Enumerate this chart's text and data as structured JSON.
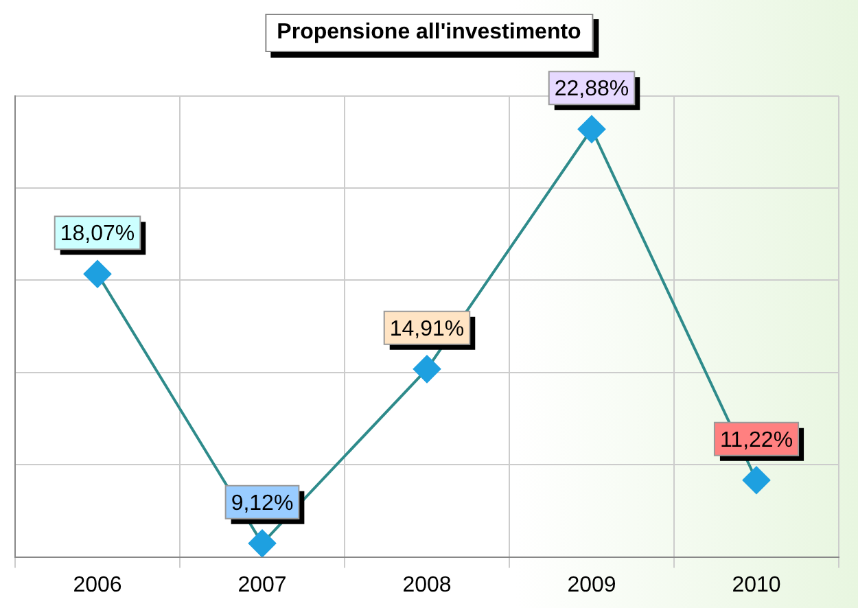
{
  "chart_data": {
    "type": "line",
    "title": "Propensione all'investimento",
    "categories": [
      "2006",
      "2007",
      "2008",
      "2009",
      "2010"
    ],
    "series": [
      {
        "color": "#2e8b8b",
        "values": [
          18.07,
          9.12,
          14.91,
          22.88,
          11.22
        ],
        "value_labels": [
          "18,07%",
          "9,12%",
          "14,91%",
          "22,88%",
          "11,22%"
        ],
        "colors": [
          "#1ea0e0",
          "#1ea0e0",
          "#1ea0e0",
          "#1ea0e0",
          "#1ea0e0"
        ]
      }
    ],
    "ylim": [
      8.67,
      23.98
    ],
    "yticks": [
      {
        "value": 11.73,
        "label": null
      },
      {
        "value": 14.8,
        "label": null
      },
      {
        "value": 17.86,
        "label": null
      },
      {
        "value": 20.92,
        "label": null
      },
      {
        "value": 23.98,
        "label": null
      }
    ],
    "tick_labels": "x",
    "grid": true,
    "legend": false,
    "marker": "diamond",
    "line_style": "solid"
  }
}
